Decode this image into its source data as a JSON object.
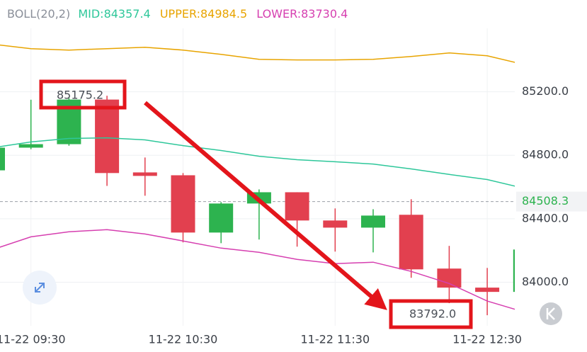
{
  "chart_data": {
    "type": "candlestick",
    "header": {
      "indicator": "BOLL(20,2)",
      "mid": "MID:84357.4",
      "upper": "UPPER:84984.5",
      "lower": "LOWER:83730.4"
    },
    "categories": [
      null,
      "11-22 09:30",
      null,
      null,
      null,
      "11-22 10:30",
      null,
      null,
      null,
      "11-22 11:30",
      null,
      null,
      null,
      "11-22 12:30",
      null
    ],
    "ohlc": {
      "open": [
        84705,
        84848,
        84870,
        85151,
        84692,
        84674,
        84313,
        84496,
        84567,
        84389,
        84344,
        84425,
        84086,
        83966,
        83939
      ],
      "high": [
        84860,
        85150,
        85160,
        85175.2,
        84786,
        84688,
        84505,
        84585,
        84567,
        84465,
        84460,
        84523,
        84229,
        84090,
        84206
      ],
      "low": [
        84700,
        84838,
        84860,
        84607,
        84545,
        84251,
        84246,
        84269,
        84224,
        84193,
        84188,
        84028,
        83868,
        83792.0,
        83939
      ],
      "close": [
        84848,
        84870,
        85151,
        84688,
        84670,
        84313,
        84496,
        84567,
        84389,
        84344,
        84420,
        84081,
        83966,
        83939,
        84206
      ]
    },
    "up_color": "#2db34f",
    "down_color": "#e2404f",
    "series": [
      {
        "name": "UPPER",
        "color": "#e8a400",
        "values": [
          85500,
          85472,
          85463,
          85472,
          85481,
          85463,
          85436,
          85405,
          85401,
          85401,
          85405,
          85423,
          85445,
          85427,
          85370
        ]
      },
      {
        "name": "MID",
        "color": "#2ec79a",
        "values": [
          84848,
          84884,
          84906,
          84910,
          84897,
          84861,
          84830,
          84794,
          84772,
          84759,
          84745,
          84714,
          84679,
          84647,
          84590
        ]
      },
      {
        "name": "LOWER",
        "color": "#d63fb0",
        "values": [
          84206,
          84286,
          84318,
          84331,
          84304,
          84260,
          84215,
          84188,
          84144,
          84117,
          84126,
          84068,
          83992,
          83881,
          83810
        ]
      }
    ],
    "extremes": {
      "high": {
        "value": 85175.2,
        "label": "85175.2"
      },
      "low": {
        "value": 83792.0,
        "label": "83792.0"
      }
    },
    "last_price": 84508.3,
    "ylim": [
      83770,
      85600
    ],
    "yticks": [
      {
        "value": 84000,
        "label": "84000.0"
      },
      {
        "value": 84400,
        "label": "84400.0"
      },
      {
        "value": 84800,
        "label": "84800.0"
      },
      {
        "value": 85200,
        "label": "85200.0"
      }
    ],
    "grid": true
  }
}
